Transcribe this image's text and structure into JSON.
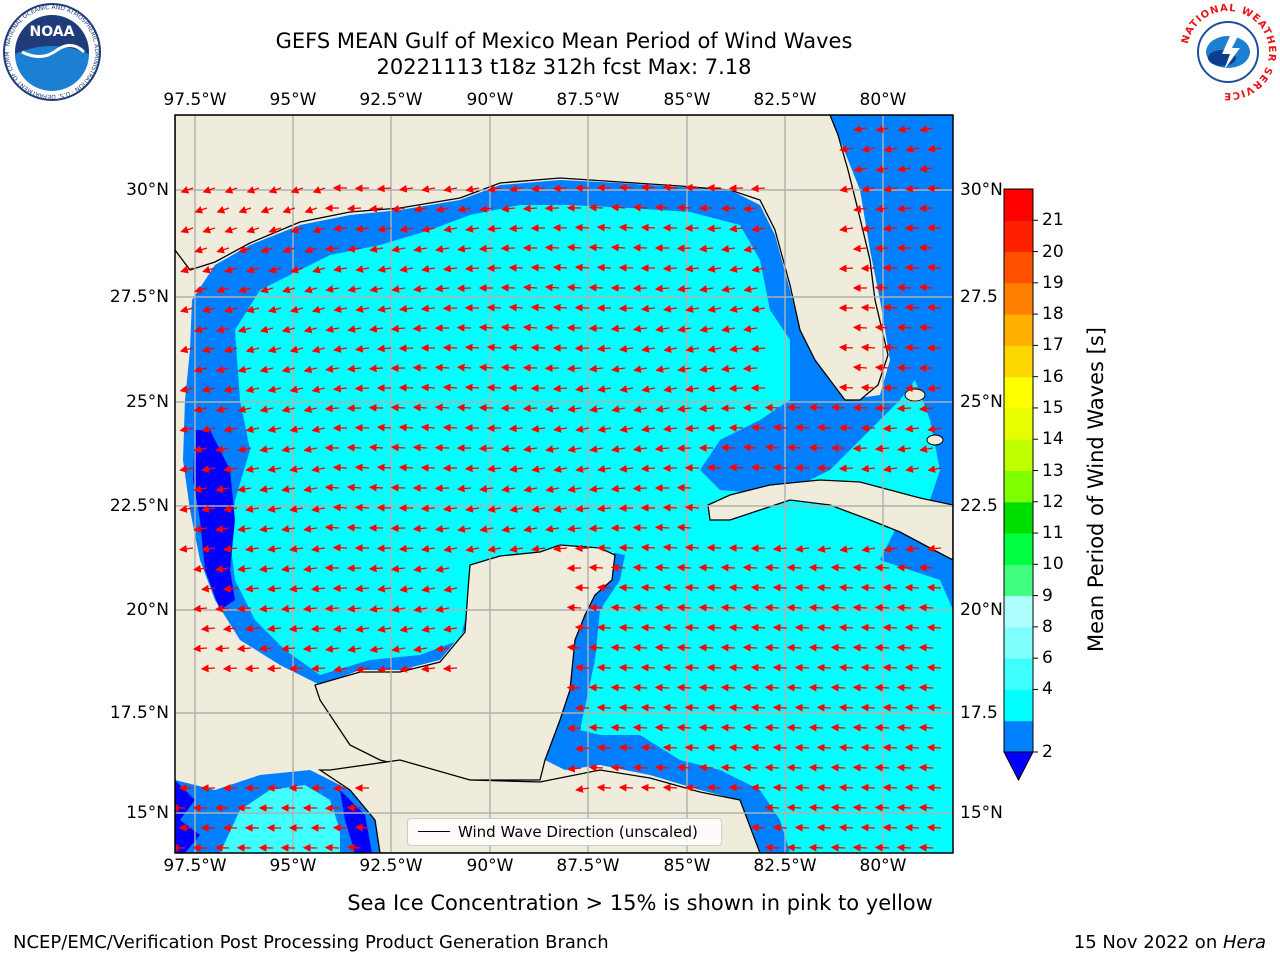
{
  "header": {
    "title_line1": "GEFS MEAN Gulf of Mexico Mean Period of Wind Waves",
    "title_line2": "20221113 t18z 312h fcst   Max: 7.18"
  },
  "logos": {
    "left": "NOAA",
    "left_ring": "NATIONAL OCEANIC AND ATMOSPHERIC ADMINISTRATION · U.S. DEPARTMENT OF COMMERCE",
    "right_ring": "NATIONAL WEATHER SERVICE"
  },
  "map": {
    "lon_ticks": [
      "97.5°W",
      "95°W",
      "92.5°W",
      "90°W",
      "87.5°W",
      "85°W",
      "82.5°W",
      "80°W"
    ],
    "lat_ticks_left": [
      "30°N",
      "27.5°N",
      "25°N",
      "22.5°N",
      "20°N",
      "17.5°N",
      "15°N"
    ],
    "lat_ticks_right": [
      "30°N",
      "27.5",
      "25°N",
      "22.5",
      "20°N",
      "17.5",
      "15°N"
    ],
    "legend_label": "Wind Wave Direction (unscaled)",
    "land_color": "#efecdc",
    "arrow_color": "#ff0000"
  },
  "colorbar": {
    "label": "Mean Period of Wind Waves [s]",
    "ticks": [
      "2",
      "4",
      "6",
      "8",
      "9",
      "10",
      "11",
      "12",
      "13",
      "14",
      "15",
      "16",
      "17",
      "18",
      "19",
      "20",
      "21"
    ],
    "colors": [
      "#0080ff",
      "#00ffff",
      "#40ffff",
      "#80ffff",
      "#b0ffff",
      "#40ff80",
      "#00ff40",
      "#00e000",
      "#80ff00",
      "#c0ff00",
      "#e8ff00",
      "#ffff00",
      "#ffd700",
      "#ffb000",
      "#ff8000",
      "#ff5000",
      "#ff2000",
      "#ff0000"
    ],
    "under_color": "#0000ff"
  },
  "footer": {
    "note": "Sea Ice Concentration > 15% is shown in pink to yellow",
    "credit": "NCEP/EMC/Verification Post Processing Product Generation Branch",
    "date": "15 Nov 2022 on ",
    "host": "Hera"
  }
}
